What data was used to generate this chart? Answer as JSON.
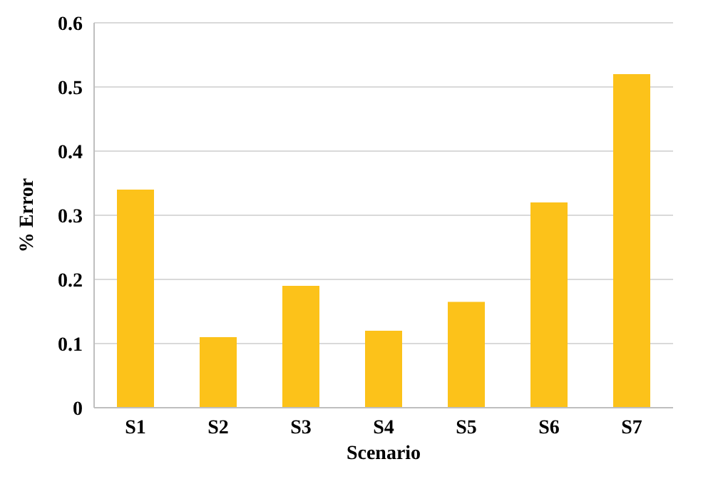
{
  "chart_data": {
    "type": "bar",
    "xlabel": "Scenario",
    "ylabel": "% Error",
    "categories": [
      "S1",
      "S2",
      "S3",
      "S4",
      "S5",
      "S6",
      "S7"
    ],
    "values": [
      0.34,
      0.11,
      0.19,
      0.12,
      0.165,
      0.32,
      0.52
    ],
    "color": "#fcc21a",
    "ylim": [
      0,
      0.6
    ],
    "yticks": [
      0,
      0.1,
      0.2,
      0.3,
      0.4,
      0.5,
      0.6
    ],
    "grid": "y"
  }
}
